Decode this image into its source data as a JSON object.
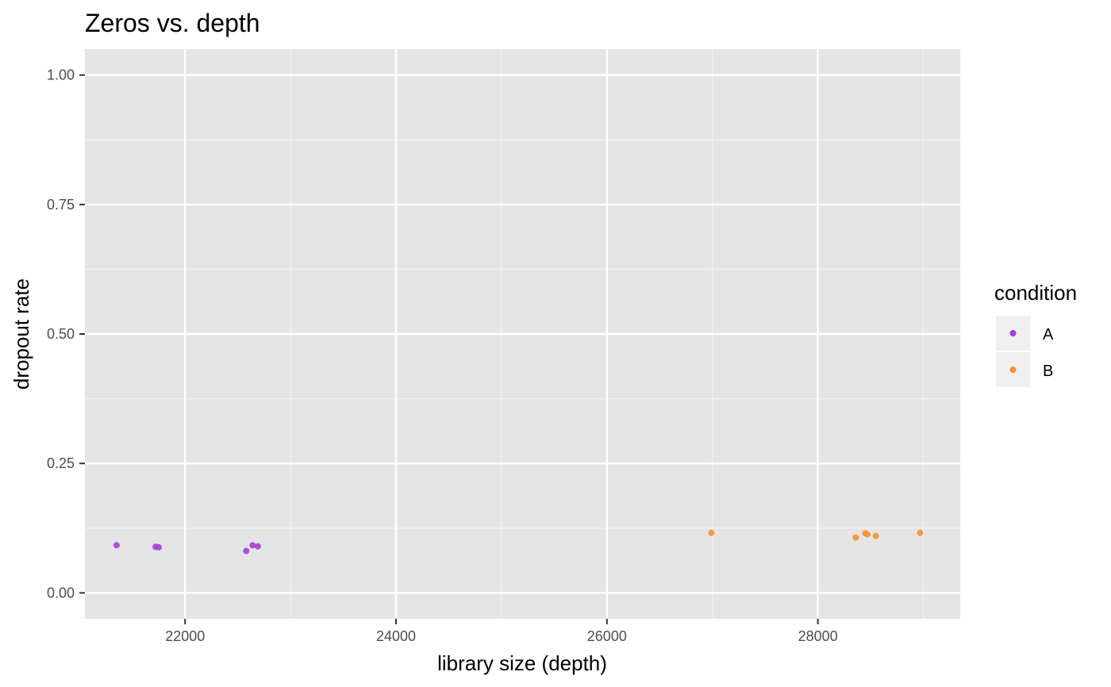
{
  "chart_data": {
    "type": "scatter",
    "title": "Zeros vs. depth",
    "xlabel": "library size (depth)",
    "ylabel": "dropout rate",
    "xlim": [
      21050,
      29350
    ],
    "ylim": [
      -0.05,
      1.05
    ],
    "x_ticks": [
      22000,
      24000,
      26000,
      28000
    ],
    "x_tick_labels": [
      "22000",
      "24000",
      "26000",
      "28000"
    ],
    "x_minor": [
      23000,
      25000,
      27000,
      29000
    ],
    "y_ticks": [
      0,
      0.25,
      0.5,
      0.75,
      1
    ],
    "y_tick_labels": [
      "0.00",
      "0.25",
      "0.50",
      "0.75",
      "1.00"
    ],
    "y_minor": [
      0.125,
      0.375,
      0.625,
      0.875
    ],
    "grid": true,
    "legend": {
      "title": "condition",
      "position": "right"
    },
    "series": [
      {
        "name": "A",
        "color": "#a63fd6",
        "points": [
          {
            "x": 21350,
            "y": 0.092
          },
          {
            "x": 21720,
            "y": 0.089
          },
          {
            "x": 21750,
            "y": 0.088
          },
          {
            "x": 22580,
            "y": 0.081
          },
          {
            "x": 22640,
            "y": 0.092
          },
          {
            "x": 22690,
            "y": 0.09
          }
        ]
      },
      {
        "name": "B",
        "color": "#f5922f",
        "points": [
          {
            "x": 26990,
            "y": 0.116
          },
          {
            "x": 28360,
            "y": 0.107
          },
          {
            "x": 28450,
            "y": 0.115
          },
          {
            "x": 28470,
            "y": 0.113
          },
          {
            "x": 28550,
            "y": 0.11
          },
          {
            "x": 28970,
            "y": 0.116
          }
        ]
      }
    ]
  }
}
